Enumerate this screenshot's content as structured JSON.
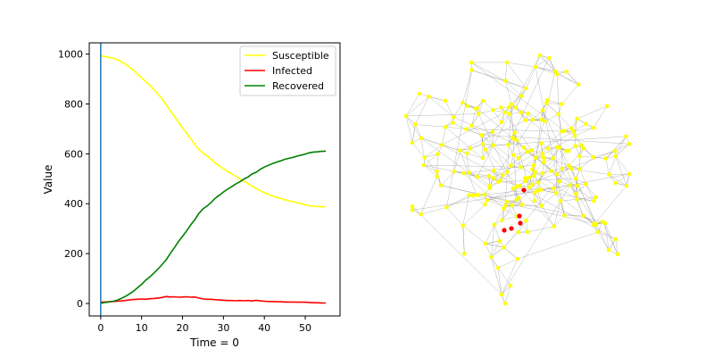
{
  "chart_data": [
    {
      "type": "line",
      "xlabel": "Time = 0",
      "ylabel": "Value",
      "xlim": [
        -2.8,
        58.5
      ],
      "ylim": [
        -50,
        1045
      ],
      "xticks": [
        0,
        10,
        20,
        30,
        40,
        50
      ],
      "yticks": [
        0,
        200,
        400,
        600,
        800,
        1000
      ],
      "vline_x": 0,
      "vline_color": "#1f77b4",
      "legend_position": "upper right",
      "x": [
        0,
        1,
        2,
        3,
        4,
        5,
        6,
        7,
        8,
        9,
        10,
        11,
        12,
        13,
        14,
        15,
        16,
        17,
        18,
        19,
        20,
        21,
        22,
        23,
        24,
        25,
        26,
        27,
        28,
        29,
        30,
        31,
        32,
        33,
        34,
        35,
        36,
        37,
        38,
        39,
        40,
        41,
        42,
        43,
        44,
        45,
        46,
        47,
        48,
        49,
        50,
        51,
        52,
        53,
        54,
        55
      ],
      "series": [
        {
          "name": "Susceptible",
          "color": "#ffff00",
          "values": [
            995,
            990,
            987,
            983,
            978,
            970,
            960,
            948,
            935,
            920,
            905,
            889,
            875,
            858,
            840,
            820,
            797,
            773,
            750,
            727,
            705,
            682,
            660,
            638,
            617,
            603,
            592,
            578,
            563,
            552,
            540,
            530,
            520,
            510,
            500,
            490,
            481,
            471,
            461,
            452,
            444,
            438,
            431,
            426,
            421,
            416,
            412,
            408,
            404,
            400,
            396,
            392,
            390,
            389,
            388,
            387
          ]
        },
        {
          "name": "Infected",
          "color": "#ff0000",
          "values": [
            5,
            6,
            7,
            8,
            9,
            10,
            12,
            14,
            16,
            17,
            18,
            17,
            19,
            20,
            22,
            24,
            28,
            26,
            27,
            25,
            26,
            27,
            25,
            26,
            22,
            18,
            17,
            17,
            15,
            14,
            13,
            12,
            12,
            11,
            12,
            11,
            12,
            10,
            13,
            10,
            9,
            8,
            8,
            7,
            7,
            6,
            6,
            6,
            5,
            5,
            5,
            4,
            3,
            3,
            2,
            2
          ]
        },
        {
          "name": "Recovered",
          "color": "#008000",
          "values": [
            0,
            4,
            6,
            9,
            13,
            20,
            28,
            38,
            49,
            63,
            77,
            94,
            106,
            122,
            138,
            156,
            175,
            201,
            223,
            248,
            269,
            291,
            315,
            336,
            361,
            379,
            391,
            405,
            422,
            434,
            447,
            458,
            468,
            479,
            488,
            499,
            507,
            519,
            526,
            538,
            547,
            554,
            561,
            567,
            572,
            578,
            582,
            586,
            591,
            595,
            599,
            604,
            607,
            608,
            610,
            611
          ]
        }
      ]
    },
    {
      "type": "network",
      "colors": {
        "node_susceptible": "#ffff00",
        "node_infected": "#ff0000",
        "edge": "#888888"
      },
      "node_counts": {
        "susceptible": 1000,
        "infected": 5
      }
    }
  ]
}
